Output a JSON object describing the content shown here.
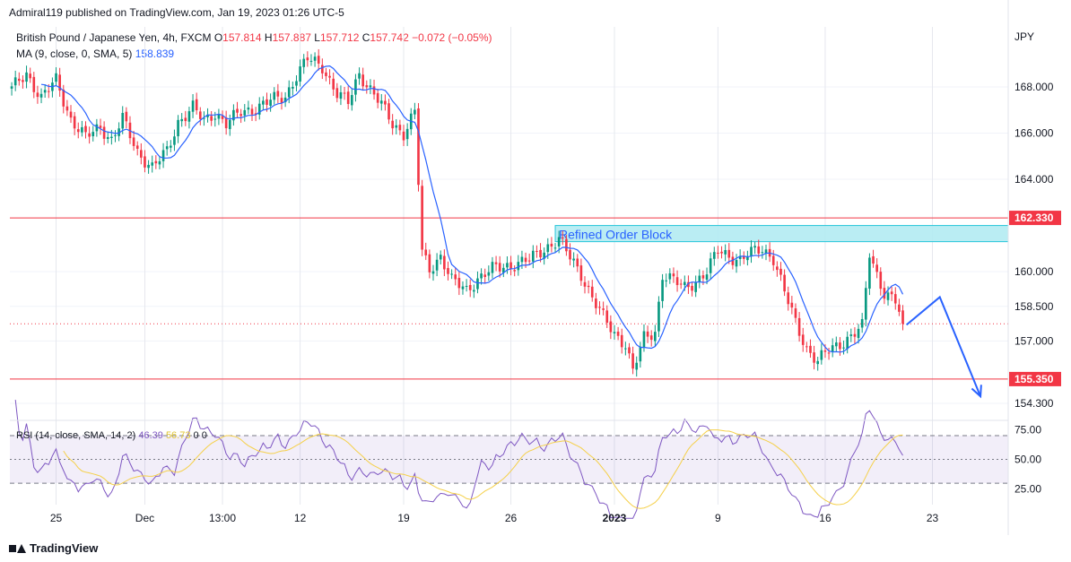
{
  "header": {
    "published": "Admiral119 published on TradingView.com, Jan 19, 2023 01:26 UTC-5"
  },
  "legend": {
    "symbol": "British Pound / Japanese Yen, 4h, FXCM",
    "o_label": "O",
    "o_value": "157.814",
    "h_label": "H",
    "h_value": "157.887",
    "l_label": "L",
    "l_value": "157.712",
    "c_label": "C",
    "c_value": "157.742",
    "change": "−0.072 (−0.05%)",
    "ma_label": "MA (9, close, 0, SMA, 5)",
    "ma_value": "158.839"
  },
  "rsi_legend": {
    "label": "RSI (14, close, SMA, 14, 2)",
    "rsi_value": "46.39",
    "rsi_ma_value": "56.73",
    "extra": "0  0"
  },
  "footer": {
    "brand": "TradingView"
  },
  "colors": {
    "up": "#089981",
    "down": "#f23645",
    "ma": "#2962ff",
    "level": "#f23645",
    "order_block": "#b2ebf2",
    "rsi": "#7e57c2",
    "rsi_ma": "#f5d049"
  },
  "chart_data": {
    "type": "candlestick",
    "currency": "JPY",
    "ylim": [
      153.6,
      170.6
    ],
    "price_ticks": [
      168.0,
      166.0,
      164.0,
      160.0,
      158.5,
      157.0,
      154.3
    ],
    "price_tick_labels": [
      "168.000",
      "166.000",
      "164.000",
      "160.000",
      "158.500",
      "157.000",
      "154.300"
    ],
    "x_labels": [
      "25",
      "Dec",
      "13:00",
      "12",
      "19",
      "26",
      "2023",
      "9",
      "16",
      "23"
    ],
    "x_label_index": [
      12,
      36,
      57,
      78,
      106,
      135,
      163,
      191,
      220,
      249
    ],
    "horizontal_levels": [
      {
        "value": 162.33,
        "label": "162.330"
      },
      {
        "value": 155.35,
        "label": "155.350"
      }
    ],
    "current_price_line": 157.742,
    "order_block": {
      "label": "Refined Order Block",
      "top": 162.0,
      "bottom": 161.3,
      "start_index": 147
    },
    "projection_path": [
      {
        "index": 242,
        "price": 157.7
      },
      {
        "index": 251,
        "price": 158.9
      },
      {
        "index": 262,
        "price": 154.6
      }
    ],
    "keypoints": [
      [
        0,
        167.9
      ],
      [
        4,
        168.6
      ],
      [
        8,
        167.5
      ],
      [
        12,
        168.3
      ],
      [
        16,
        166.6
      ],
      [
        20,
        165.8
      ],
      [
        24,
        166.3
      ],
      [
        27,
        165.7
      ],
      [
        30,
        166.6
      ],
      [
        34,
        165.2
      ],
      [
        38,
        164.5
      ],
      [
        42,
        165.2
      ],
      [
        45,
        166.5
      ],
      [
        49,
        167.1
      ],
      [
        52,
        166.5
      ],
      [
        55,
        166.9
      ],
      [
        58,
        166.4
      ],
      [
        62,
        166.9
      ],
      [
        66,
        167.1
      ],
      [
        70,
        167.4
      ],
      [
        74,
        167.6
      ],
      [
        77,
        168.5
      ],
      [
        80,
        169.2
      ],
      [
        84,
        168.9
      ],
      [
        88,
        167.7
      ],
      [
        91,
        167.3
      ],
      [
        94,
        168.6
      ],
      [
        97,
        167.9
      ],
      [
        100,
        167.2
      ],
      [
        103,
        166.4
      ],
      [
        106,
        166.0
      ],
      [
        109,
        166.9
      ],
      [
        111,
        160.8
      ],
      [
        113,
        160.1
      ],
      [
        116,
        160.7
      ],
      [
        119,
        159.6
      ],
      [
        123,
        159.2
      ],
      [
        126,
        159.7
      ],
      [
        130,
        160.1
      ],
      [
        135,
        160.3
      ],
      [
        140,
        160.5
      ],
      [
        145,
        161.1
      ],
      [
        148,
        161.4
      ],
      [
        151,
        160.6
      ],
      [
        154,
        159.9
      ],
      [
        157,
        158.9
      ],
      [
        160,
        158.0
      ],
      [
        163,
        157.3
      ],
      [
        166,
        156.9
      ],
      [
        168,
        155.7
      ],
      [
        171,
        157.1
      ],
      [
        174,
        157.4
      ],
      [
        176,
        159.9
      ],
      [
        179,
        159.6
      ],
      [
        182,
        159.3
      ],
      [
        185,
        159.6
      ],
      [
        188,
        160.0
      ],
      [
        191,
        160.9
      ],
      [
        194,
        160.7
      ],
      [
        197,
        160.5
      ],
      [
        200,
        160.8
      ],
      [
        203,
        161.0
      ],
      [
        206,
        160.6
      ],
      [
        209,
        159.1
      ],
      [
        212,
        157.8
      ],
      [
        215,
        156.7
      ],
      [
        218,
        156.1
      ],
      [
        221,
        156.6
      ],
      [
        224,
        156.9
      ],
      [
        227,
        157.2
      ],
      [
        230,
        157.6
      ],
      [
        232,
        160.8
      ],
      [
        234,
        159.9
      ],
      [
        236,
        159.1
      ],
      [
        239,
        158.7
      ],
      [
        241,
        157.742
      ]
    ],
    "rsi": {
      "ylim": [
        12,
        82
      ],
      "levels": [
        70,
        50,
        30
      ],
      "tick_labels": [
        "75.00",
        "50.00",
        "25.00"
      ],
      "tick_values": [
        75,
        50,
        25
      ],
      "rsi_value": 46.39,
      "rsi_ma_value": 56.73
    }
  }
}
